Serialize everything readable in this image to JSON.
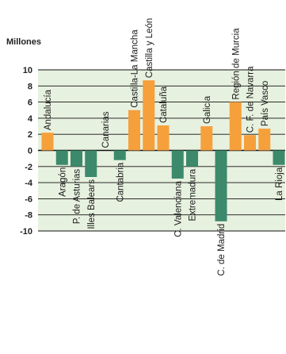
{
  "chart_data": {
    "type": "bar",
    "title": "",
    "ylabel": "Millones",
    "xlabel": "",
    "ylim": [
      -10,
      10
    ],
    "yticks": [
      10,
      8,
      6,
      4,
      2,
      0,
      -2,
      -4,
      -6,
      -8,
      -10
    ],
    "grid": true,
    "categories": [
      "Andalucía",
      "Aragón",
      "P. de Asturias",
      "Illes Balears",
      "Canarias",
      "Cantabria",
      "Castilla-La Mancha",
      "Castilla y León",
      "Cataluña",
      "C. Valenciana",
      "Extremadura",
      "Galicia",
      "C. de Madrid",
      "Región de Murcia",
      "C. F. de Navarra",
      "País Vasco",
      "La Rioja"
    ],
    "values": [
      2.2,
      -1.8,
      -2.0,
      -3.3,
      0,
      -1.2,
      5.0,
      8.7,
      3.1,
      -3.5,
      -2.0,
      3.0,
      -8.8,
      6.0,
      1.9,
      2.7,
      -1.8
    ],
    "colors": {
      "positive": "#f6a03c",
      "negative": "#3c8a6b",
      "plot_background": "#e7f1df",
      "grid": "#111111"
    }
  }
}
